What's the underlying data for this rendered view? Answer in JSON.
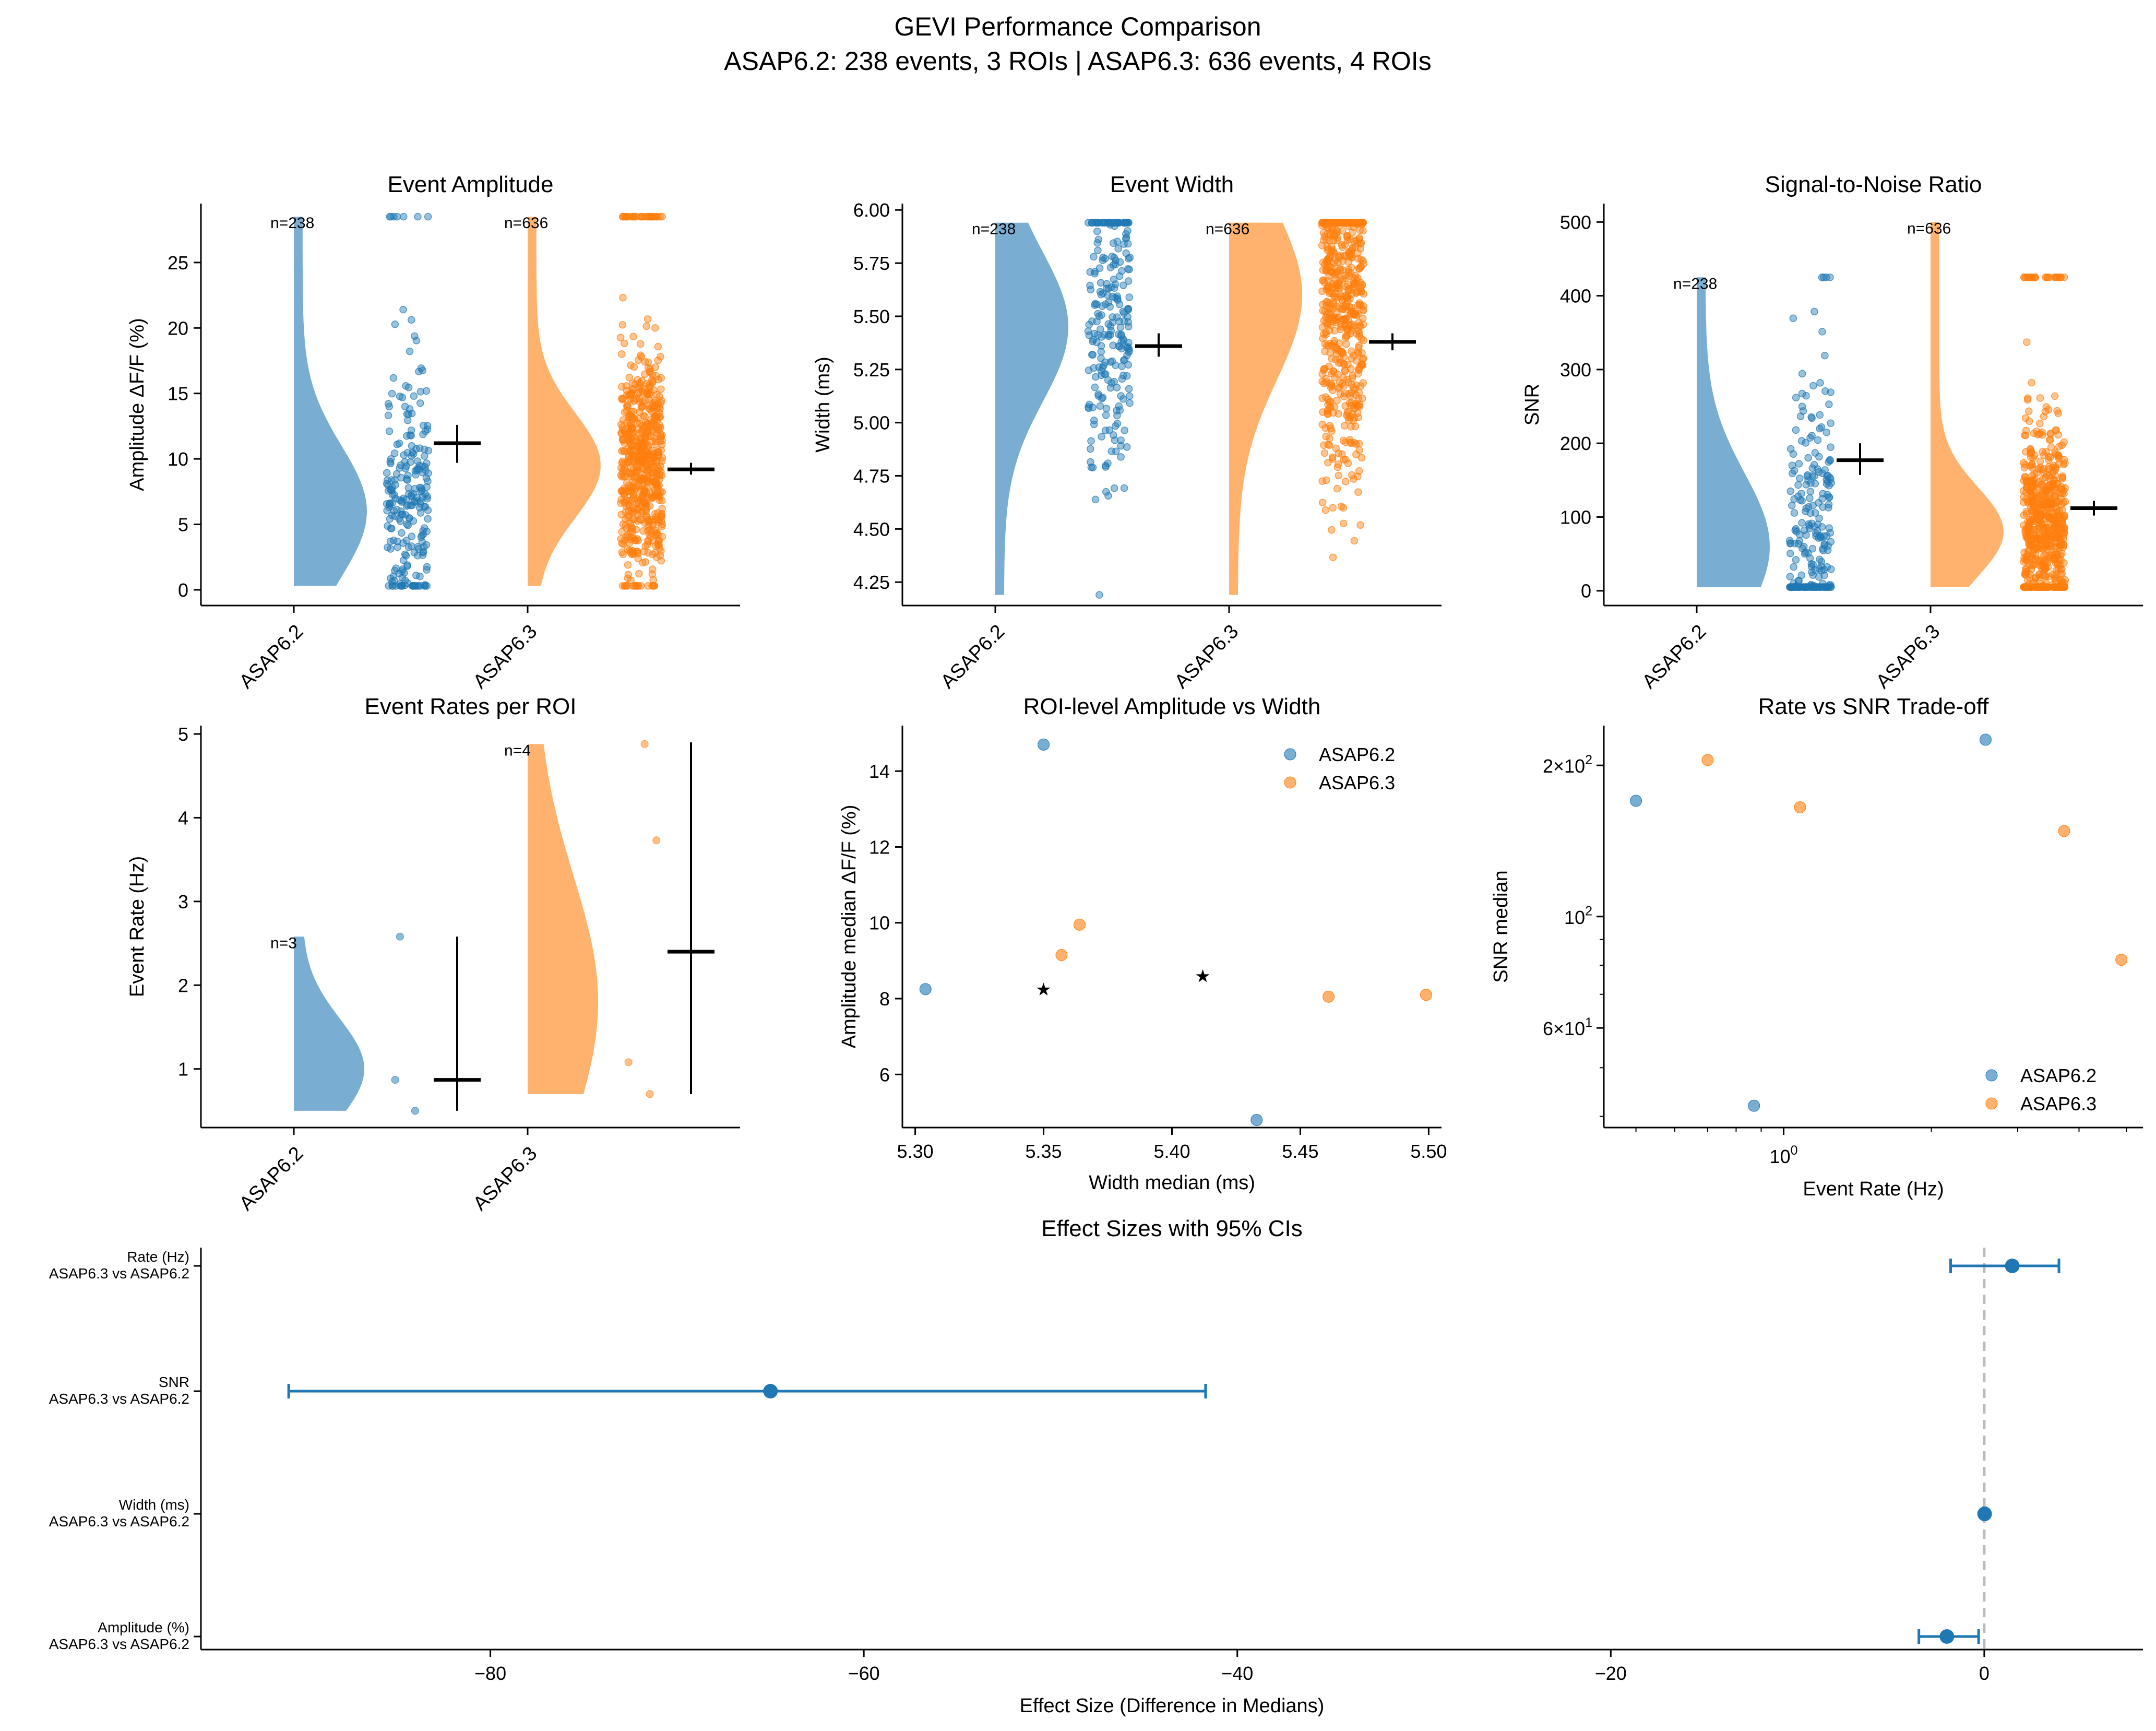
{
  "figure": {
    "title_line1": "GEVI Performance Comparison",
    "title_line2": "ASAP6.2: 238 events, 3 ROIs | ASAP6.3: 636 events, 4 ROIs"
  },
  "colors": {
    "asap62": "#1f77b4",
    "asap63": "#ff7f0e",
    "zero_line": "#bbbbbb",
    "marker": "#000000"
  },
  "chart_data": [
    {
      "id": "amplitude",
      "type": "raincloud",
      "title": "Event Amplitude",
      "xlabel": "",
      "ylabel": "Amplitude ΔF/F (%)",
      "ylim": [
        -1.2,
        29.5
      ],
      "yticks": [
        0,
        5,
        10,
        15,
        20,
        25
      ],
      "ytick_labels": [
        "0",
        "5",
        "10",
        "15",
        "20",
        "25"
      ],
      "categories": [
        "ASAP6.2",
        "ASAP6.3"
      ],
      "groups": [
        {
          "name": "ASAP6.2",
          "n_label": "n=238",
          "n": 238,
          "median": 11.2,
          "ci": [
            9.7,
            12.6
          ],
          "dist_range": [
            0.3,
            28.5
          ],
          "density_peak": 6.0,
          "density_spread": 5.0,
          "clip_value": 28.5
        },
        {
          "name": "ASAP6.3",
          "n_label": "n=636",
          "n": 636,
          "median": 9.2,
          "ci": [
            8.8,
            9.7
          ],
          "dist_range": [
            0.3,
            28.5
          ],
          "density_peak": 9.5,
          "density_spread": 4.0,
          "clip_value": 28.5
        }
      ]
    },
    {
      "id": "width",
      "type": "raincloud",
      "title": "Event Width",
      "xlabel": "",
      "ylabel": "Width (ms)",
      "ylim": [
        4.14,
        6.03
      ],
      "yticks": [
        4.25,
        4.5,
        4.75,
        5.0,
        5.25,
        5.5,
        5.75,
        6.0
      ],
      "ytick_labels": [
        "4.25",
        "4.50",
        "4.75",
        "5.00",
        "5.25",
        "5.50",
        "5.75",
        "6.00"
      ],
      "categories": [
        "ASAP6.2",
        "ASAP6.3"
      ],
      "groups": [
        {
          "name": "ASAP6.2",
          "n_label": "n=238",
          "n": 238,
          "median": 5.36,
          "ci": [
            5.31,
            5.42
          ],
          "dist_range": [
            4.19,
            5.94
          ],
          "density_peak": 5.45,
          "density_spread": 0.35,
          "clip_value": 5.94
        },
        {
          "name": "ASAP6.3",
          "n_label": "n=636",
          "n": 636,
          "median": 5.38,
          "ci": [
            5.34,
            5.42
          ],
          "dist_range": [
            4.19,
            5.94
          ],
          "density_peak": 5.6,
          "density_spread": 0.4,
          "clip_value": 5.94
        }
      ]
    },
    {
      "id": "snr",
      "type": "raincloud",
      "title": "Signal-to-Noise Ratio",
      "xlabel": "",
      "ylabel": "SNR",
      "ylim": [
        -20,
        525
      ],
      "yticks": [
        0,
        100,
        200,
        300,
        400,
        500
      ],
      "ytick_labels": [
        "0",
        "100",
        "200",
        "300",
        "400",
        "500"
      ],
      "categories": [
        "ASAP6.2",
        "ASAP6.3"
      ],
      "groups": [
        {
          "name": "ASAP6.2",
          "n_label": "n=238",
          "n": 238,
          "median": 177,
          "ci": [
            157,
            200
          ],
          "dist_range": [
            5,
            425
          ],
          "density_peak": 60,
          "density_spread": 100,
          "clip_value": 425
        },
        {
          "name": "ASAP6.3",
          "n_label": "n=636",
          "n": 636,
          "median": 112,
          "ci": [
            102,
            122
          ],
          "dist_range": [
            5,
            500
          ],
          "density_peak": 80,
          "density_spread": 60,
          "clip_value": 425
        }
      ]
    },
    {
      "id": "rates",
      "type": "raincloud",
      "title": "Event Rates per ROI",
      "xlabel": "",
      "ylabel": "Event Rate (Hz)",
      "ylim": [
        0.3,
        5.1
      ],
      "yticks": [
        1,
        2,
        3,
        4,
        5
      ],
      "ytick_labels": [
        "1",
        "2",
        "3",
        "4",
        "5"
      ],
      "categories": [
        "ASAP6.2",
        "ASAP6.3"
      ],
      "groups": [
        {
          "name": "ASAP6.2",
          "n_label": "n=3",
          "n": 3,
          "points": [
            0.5,
            0.87,
            2.58
          ],
          "median": 0.87,
          "ci": [
            0.5,
            2.58
          ],
          "dist_range": [
            0.5,
            2.58
          ],
          "density_peak": 1.0,
          "density_spread": 0.6
        },
        {
          "name": "ASAP6.3",
          "n_label": "n=4",
          "n": 4,
          "points": [
            0.7,
            1.08,
            3.73,
            4.88
          ],
          "median": 2.4,
          "ci": [
            0.7,
            4.9
          ],
          "dist_range": [
            0.7,
            4.88
          ],
          "density_peak": 1.8,
          "density_spread": 1.5
        }
      ]
    },
    {
      "id": "amp_vs_width",
      "type": "scatter",
      "title": "ROI-level Amplitude vs Width",
      "xlabel": "Width median (ms)",
      "ylabel": "Amplitude median ΔF/F (%)",
      "xlim": [
        5.295,
        5.505
      ],
      "ylim": [
        4.6,
        15.2
      ],
      "xticks": [
        5.3,
        5.35,
        5.4,
        5.45,
        5.5
      ],
      "xtick_labels": [
        "5.30",
        "5.35",
        "5.40",
        "5.45",
        "5.50"
      ],
      "yticks": [
        6,
        8,
        10,
        12,
        14
      ],
      "ytick_labels": [
        "6",
        "8",
        "10",
        "12",
        "14"
      ],
      "legend": "top-right",
      "series": [
        {
          "name": "ASAP6.2",
          "points": [
            [
              5.304,
              8.25
            ],
            [
              5.35,
              14.7
            ],
            [
              5.433,
              4.8
            ]
          ]
        },
        {
          "name": "ASAP6.3",
          "points": [
            [
              5.357,
              9.15
            ],
            [
              5.364,
              9.95
            ],
            [
              5.461,
              8.05
            ],
            [
              5.499,
              8.1
            ]
          ]
        }
      ],
      "markers": [
        [
          5.35,
          8.25
        ],
        [
          5.412,
          8.6
        ]
      ]
    },
    {
      "id": "rate_vs_snr",
      "type": "scatter",
      "title": "Rate vs SNR Trade-off",
      "xlabel": "Event Rate (Hz)",
      "ylabel": "SNR median",
      "xscale": "log",
      "yscale": "log",
      "xlim": [
        0.43,
        5.4
      ],
      "ylim": [
        38,
        240
      ],
      "xticks": [
        1
      ],
      "xtick_labels": [
        "10^0"
      ],
      "yticks": [
        60,
        100,
        200
      ],
      "ytick_labels": [
        "6×10^1",
        "10^2",
        "2×10^2"
      ],
      "legend": "bottom-right",
      "series": [
        {
          "name": "ASAP6.2",
          "points": [
            [
              0.5,
              170
            ],
            [
              0.87,
              42
            ],
            [
              2.58,
              225
            ]
          ]
        },
        {
          "name": "ASAP6.3",
          "points": [
            [
              0.7,
              205
            ],
            [
              1.08,
              165
            ],
            [
              3.73,
              148
            ],
            [
              4.88,
              82
            ]
          ]
        }
      ]
    },
    {
      "id": "effect_sizes",
      "type": "forest",
      "title": "Effect Sizes with 95% CIs",
      "xlabel": "Effect Size (Difference in Medians)",
      "ylabel": "",
      "xlim": [
        -95.5,
        8.5
      ],
      "xticks": [
        -80,
        -60,
        -40,
        -20,
        0
      ],
      "xtick_labels": [
        "−80",
        "−60",
        "−40",
        "−20",
        "0"
      ],
      "reference_line": 0,
      "rows": [
        {
          "label_line1": "Rate (Hz)",
          "label_line2": "ASAP6.3 vs ASAP6.2",
          "estimate": 1.5,
          "ci": [
            -1.8,
            4.0
          ]
        },
        {
          "label_line1": "SNR",
          "label_line2": "ASAP6.3 vs ASAP6.2",
          "estimate": -65,
          "ci": [
            -90.8,
            -41.7
          ]
        },
        {
          "label_line1": "Width (ms)",
          "label_line2": "ASAP6.3 vs ASAP6.2",
          "estimate": 0.02,
          "ci": [
            -0.05,
            0.08
          ]
        },
        {
          "label_line1": "Amplitude (%)",
          "label_line2": "ASAP6.3 vs ASAP6.2",
          "estimate": -2.0,
          "ci": [
            -3.5,
            -0.3
          ]
        }
      ]
    }
  ]
}
